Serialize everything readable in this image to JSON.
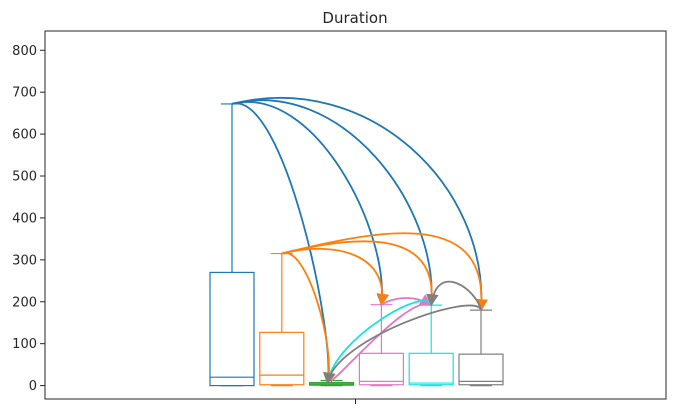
{
  "chart_data": {
    "type": "box",
    "title": "Duration",
    "xlabel": "",
    "ylabel": "",
    "ylim": [
      -32,
      846
    ],
    "yticks": [
      0,
      100,
      200,
      300,
      400,
      500,
      600,
      700,
      800
    ],
    "yticklabels": [
      "0",
      "100",
      "200",
      "300",
      "400",
      "500",
      "600",
      "700",
      "800"
    ],
    "grid": false,
    "legend": "none",
    "series": [
      {
        "color": "#1f77b4",
        "whislo": 0,
        "q1": 0,
        "median": 20,
        "q3": 270,
        "whishi": 672
      },
      {
        "color": "#ff7f0e",
        "whislo": 0,
        "q1": 2,
        "median": 25,
        "q3": 127,
        "whishi": 315
      },
      {
        "color": "#2ca02c",
        "whislo": 0,
        "q1": 1,
        "median": 4,
        "q3": 7,
        "whishi": 12
      },
      {
        "color": "#e377c2",
        "whislo": 0,
        "q1": 2,
        "median": 10,
        "q3": 77,
        "whishi": 193
      },
      {
        "color": "#17e3e3",
        "whislo": 0,
        "q1": 2,
        "median": 6,
        "q3": 77,
        "whishi": 192
      },
      {
        "color": "#7f7f7f",
        "whislo": 0,
        "q1": 2,
        "median": 10,
        "q3": 75,
        "whishi": 180
      }
    ],
    "arrows": [
      {
        "color": "#1f77b4",
        "from": 0,
        "to": 2
      },
      {
        "color": "#1f77b4",
        "from": 0,
        "to": 3
      },
      {
        "color": "#1f77b4",
        "from": 0,
        "to": 4
      },
      {
        "color": "#1f77b4",
        "from": 0,
        "to": 5
      },
      {
        "color": "#ff7f0e",
        "from": 1,
        "to": 2
      },
      {
        "color": "#ff7f0e",
        "from": 1,
        "to": 3
      },
      {
        "color": "#ff7f0e",
        "from": 1,
        "to": 4
      },
      {
        "color": "#ff7f0e",
        "from": 1,
        "to": 5
      },
      {
        "color": "#e377c2",
        "from": 2,
        "to": 4
      },
      {
        "color": "#e377c2",
        "from": 3,
        "to": 4
      },
      {
        "color": "#17e3e3",
        "from": 4,
        "to": 2
      },
      {
        "color": "#7f7f7f",
        "from": 5,
        "to": 2
      },
      {
        "color": "#7f7f7f",
        "from": 5,
        "to": 4
      }
    ]
  }
}
